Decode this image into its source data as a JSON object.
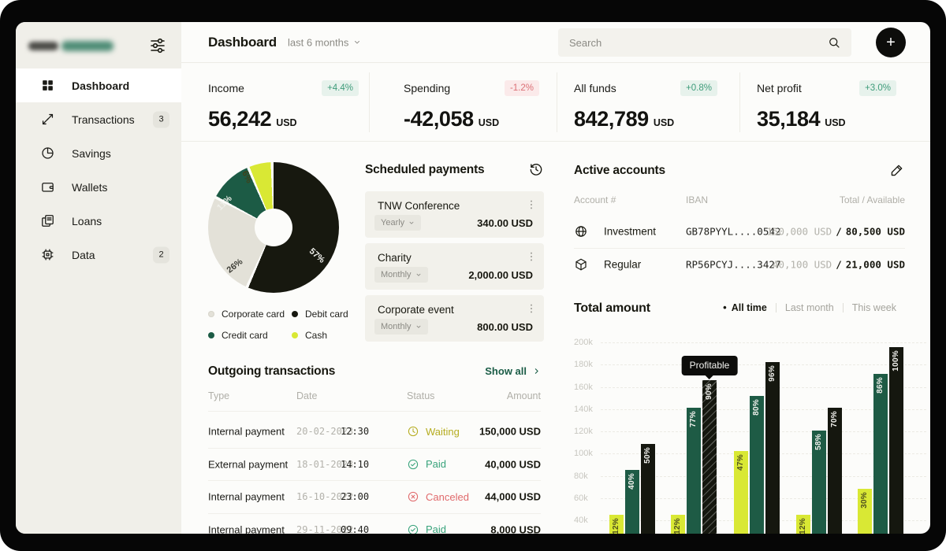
{
  "window": {
    "frame_color": "#060606",
    "app_bg": "#FCFCFA",
    "sidebar_bg": "#F0EFE9",
    "accent_green": "#1A5C46"
  },
  "sidebar": {
    "nav": [
      {
        "label": "Dashboard",
        "icon": "grid-icon",
        "active": true
      },
      {
        "label": "Transactions",
        "icon": "transfer-arrows-icon",
        "badge": "3"
      },
      {
        "label": "Savings",
        "icon": "pie-icon"
      },
      {
        "label": "Wallets",
        "icon": "wallet-icon"
      },
      {
        "label": "Loans",
        "icon": "documents-icon"
      },
      {
        "label": "Data",
        "icon": "chip-icon",
        "badge": "2"
      }
    ]
  },
  "topbar": {
    "title": "Dashboard",
    "period": "last 6 months",
    "search_placeholder": "Search",
    "add_label": "+"
  },
  "stats": [
    {
      "label": "Income",
      "value": "56,242",
      "currency": "USD",
      "delta": "+4.4%",
      "trend": "up"
    },
    {
      "label": "Spending",
      "value": "-42,058",
      "currency": "USD",
      "delta": "-1.2%",
      "trend": "down"
    },
    {
      "label": "All funds",
      "value": "842,789",
      "currency": "USD",
      "delta": "+0.8%",
      "trend": "up"
    },
    {
      "label": "Net profit",
      "value": "35,184",
      "currency": "USD",
      "delta": "+3.0%",
      "trend": "up"
    }
  ],
  "scheduled": {
    "title": "Scheduled payments",
    "items": [
      {
        "name": "TNW Conference",
        "frequency": "Yearly",
        "amount": "340.00 USD"
      },
      {
        "name": "Charity",
        "frequency": "Monthly",
        "amount": "2,000.00 USD"
      },
      {
        "name": "Corporate event",
        "frequency": "Monthly",
        "amount": "800.00 USD"
      }
    ]
  },
  "transactions": {
    "title": "Outgoing transactions",
    "show_all": "Show all",
    "headers": {
      "type": "Type",
      "date": "Date",
      "status": "Status",
      "amount": "Amount"
    },
    "rows": [
      {
        "type": "Internal payment",
        "date": "20-02-2023",
        "time": "12:30",
        "status": "Waiting",
        "status_icon": "clock-icon",
        "status_color": "#B5AC20",
        "amount": "150,000 USD"
      },
      {
        "type": "External payment",
        "date": "18-01-2023",
        "time": "14:10",
        "status": "Paid",
        "status_icon": "check-circle-icon",
        "status_color": "#38A37B",
        "amount": "40,000 USD"
      },
      {
        "type": "Internal payment",
        "date": "16-10-2022",
        "time": "23:00",
        "status": "Canceled",
        "status_icon": "x-circle-icon",
        "status_color": "#E0696B",
        "amount": "44,000 USD"
      },
      {
        "type": "Internal payment",
        "date": "29-11-2022",
        "time": "09:40",
        "status": "Paid",
        "status_icon": "check-circle-icon",
        "status_color": "#38A37B",
        "amount": "8,000 USD"
      }
    ]
  },
  "accounts": {
    "title": "Active accounts",
    "headers": {
      "account": "Account #",
      "iban": "IBAN",
      "total": "Total / Available"
    },
    "separator": "/",
    "rows": [
      {
        "icon": "globe-icon",
        "name": "Investment",
        "iban": "GB78PYYL....0542",
        "total": "150,000 USD",
        "available": "80,500 USD"
      },
      {
        "icon": "package-icon",
        "name": "Regular",
        "iban": "RP56PCYJ....3427",
        "total": "40,100 USD",
        "available": "21,000 USD"
      }
    ]
  },
  "chart_data": [
    {
      "type": "pie",
      "name": "payment-methods-donut",
      "slices": [
        {
          "label": "Debit card",
          "pct": 57,
          "pct_label": "57%",
          "color": "#17180F"
        },
        {
          "label": "Corporate card",
          "pct": 26,
          "pct_label": "26%",
          "color": "#E3E1D8"
        },
        {
          "label": "Credit card",
          "pct": 11,
          "pct_label": "11%",
          "color": "#1C5B45"
        },
        {
          "label": "Cash",
          "pct": 6,
          "pct_label": "6%",
          "color": "#D9E834"
        }
      ],
      "legend": [
        {
          "label": "Corporate card",
          "color": "#E3E1D8"
        },
        {
          "label": "Debit card",
          "color": "#17180F"
        },
        {
          "label": "Credit card",
          "color": "#1C5B45"
        },
        {
          "label": "Cash",
          "color": "#D9E834"
        }
      ]
    },
    {
      "type": "bar",
      "title": "Total amount",
      "active_marker": "•",
      "tabs": [
        {
          "label": "All time",
          "active": true
        },
        {
          "label": "Last month",
          "active": false
        },
        {
          "label": "This week",
          "active": false
        }
      ],
      "y_ticks": [
        "200k",
        "180k",
        "160k",
        "140k",
        "120k",
        "100k",
        "80k",
        "60k",
        "40k"
      ],
      "y_tick_values_k": [
        200,
        180,
        160,
        140,
        120,
        100,
        80,
        60,
        40
      ],
      "ylim_k": [
        40,
        200
      ],
      "grid": "dashed",
      "series": [
        {
          "name": "low",
          "color": "#D9E834",
          "label_color": "#50521F"
        },
        {
          "name": "mid",
          "color": "#1E5B45",
          "label_color": "#F1F1ED"
        },
        {
          "name": "high",
          "color": "#15170F",
          "label_color": "#F1F1ED"
        }
      ],
      "groups": [
        {
          "bars": [
            {
              "pct_label": "12%",
              "value_k": 45,
              "series": 0
            },
            {
              "pct_label": "40%",
              "value_k": 85,
              "series": 1
            },
            {
              "pct_label": "50%",
              "value_k": 109,
              "series": 2
            }
          ]
        },
        {
          "bars": [
            {
              "pct_label": "12%",
              "value_k": 45,
              "series": 0
            },
            {
              "pct_label": "77%",
              "value_k": 141,
              "series": 1
            },
            {
              "pct_label": "90%",
              "value_k": 166,
              "series": 2,
              "hatched": true,
              "tooltip": "Profitable"
            }
          ]
        },
        {
          "bars": [
            {
              "pct_label": "47%",
              "value_k": 102,
              "series": 0
            },
            {
              "pct_label": "80%",
              "value_k": 152,
              "series": 1
            },
            {
              "pct_label": "96%",
              "value_k": 182,
              "series": 2
            }
          ]
        },
        {
          "bars": [
            {
              "pct_label": "12%",
              "value_k": 45,
              "series": 0
            },
            {
              "pct_label": "58%",
              "value_k": 121,
              "series": 1
            },
            {
              "pct_label": "70%",
              "value_k": 141,
              "series": 2
            }
          ]
        },
        {
          "bars": [
            {
              "pct_label": "30%",
              "value_k": 68,
              "series": 0
            },
            {
              "pct_label": "86%",
              "value_k": 172,
              "series": 1
            },
            {
              "pct_label": "100%",
              "value_k": 196,
              "series": 2
            }
          ]
        }
      ]
    }
  ]
}
